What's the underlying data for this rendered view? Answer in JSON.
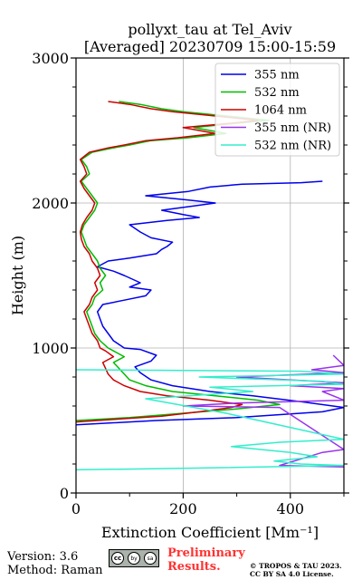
{
  "chart_data": {
    "type": "line",
    "title": "pollyxt_tau at Tel_Aviv",
    "subtitle": "[Averaged] 20230709 15:00-15:59",
    "xlabel": "Extinction Coefficient [Mm⁻¹]",
    "ylabel": "Height (m)",
    "xlim": [
      0,
      500
    ],
    "ylim": [
      0,
      3000
    ],
    "xticks": [
      "0",
      "200",
      "400"
    ],
    "yticks": [
      "0",
      "1000",
      "2000",
      "3000"
    ],
    "grid": true,
    "legend_position": "top-right",
    "series": [
      {
        "name": "355 nm",
        "color": "#0000ee",
        "points": [
          [
            0,
            470
          ],
          [
            150,
            500
          ],
          [
            300,
            520
          ],
          [
            460,
            560
          ],
          [
            500,
            590
          ],
          [
            420,
            630
          ],
          [
            330,
            670
          ],
          [
            250,
            700
          ],
          [
            180,
            740
          ],
          [
            140,
            780
          ],
          [
            120,
            830
          ],
          [
            110,
            870
          ],
          [
            140,
            910
          ],
          [
            150,
            950
          ],
          [
            120,
            990
          ],
          [
            90,
            1000
          ],
          [
            70,
            1050
          ],
          [
            60,
            1100
          ],
          [
            50,
            1150
          ],
          [
            45,
            1200
          ],
          [
            40,
            1250
          ],
          [
            50,
            1300
          ],
          [
            90,
            1330
          ],
          [
            130,
            1360
          ],
          [
            140,
            1400
          ],
          [
            100,
            1420
          ],
          [
            120,
            1450
          ],
          [
            90,
            1500
          ],
          [
            70,
            1530
          ],
          [
            40,
            1560
          ],
          [
            60,
            1600
          ],
          [
            100,
            1620
          ],
          [
            150,
            1650
          ],
          [
            160,
            1680
          ],
          [
            170,
            1700
          ],
          [
            180,
            1730
          ],
          [
            140,
            1760
          ],
          [
            120,
            1800
          ],
          [
            100,
            1850
          ],
          [
            170,
            1880
          ],
          [
            230,
            1900
          ],
          [
            200,
            1920
          ],
          [
            160,
            1950
          ],
          [
            220,
            1980
          ],
          [
            260,
            2000
          ],
          [
            210,
            2020
          ],
          [
            130,
            2050
          ],
          [
            210,
            2080
          ],
          [
            250,
            2110
          ],
          [
            310,
            2130
          ],
          [
            420,
            2140
          ],
          [
            460,
            2150
          ]
        ]
      },
      {
        "name": "532 nm",
        "color": "#00bb00",
        "points": [
          [
            0,
            500
          ],
          [
            100,
            520
          ],
          [
            200,
            550
          ],
          [
            300,
            580
          ],
          [
            380,
            610
          ],
          [
            340,
            640
          ],
          [
            260,
            670
          ],
          [
            180,
            700
          ],
          [
            130,
            740
          ],
          [
            100,
            780
          ],
          [
            90,
            820
          ],
          [
            80,
            860
          ],
          [
            70,
            900
          ],
          [
            90,
            940
          ],
          [
            70,
            980
          ],
          [
            60,
            1000
          ],
          [
            45,
            1050
          ],
          [
            35,
            1100
          ],
          [
            30,
            1150
          ],
          [
            25,
            1200
          ],
          [
            20,
            1250
          ],
          [
            30,
            1300
          ],
          [
            35,
            1350
          ],
          [
            50,
            1400
          ],
          [
            45,
            1450
          ],
          [
            55,
            1500
          ],
          [
            45,
            1550
          ],
          [
            40,
            1600
          ],
          [
            30,
            1650
          ],
          [
            20,
            1700
          ],
          [
            15,
            1750
          ],
          [
            10,
            1800
          ],
          [
            15,
            1850
          ],
          [
            25,
            1900
          ],
          [
            35,
            1950
          ],
          [
            40,
            2000
          ],
          [
            30,
            2050
          ],
          [
            20,
            2100
          ],
          [
            10,
            2150
          ],
          [
            25,
            2200
          ],
          [
            20,
            2250
          ],
          [
            10,
            2300
          ],
          [
            30,
            2350
          ],
          [
            70,
            2380
          ],
          [
            100,
            2400
          ],
          [
            140,
            2430
          ],
          [
            210,
            2450
          ],
          [
            280,
            2480
          ],
          [
            220,
            2520
          ],
          [
            300,
            2550
          ],
          [
            360,
            2570
          ],
          [
            280,
            2600
          ],
          [
            200,
            2630
          ],
          [
            160,
            2650
          ],
          [
            120,
            2680
          ],
          [
            80,
            2700
          ]
        ]
      },
      {
        "name": "1064 nm",
        "color": "#cc0000",
        "points": [
          [
            0,
            490
          ],
          [
            80,
            510
          ],
          [
            160,
            530
          ],
          [
            230,
            560
          ],
          [
            290,
            590
          ],
          [
            310,
            610
          ],
          [
            250,
            640
          ],
          [
            170,
            670
          ],
          [
            120,
            700
          ],
          [
            90,
            740
          ],
          [
            70,
            780
          ],
          [
            60,
            820
          ],
          [
            55,
            860
          ],
          [
            50,
            900
          ],
          [
            70,
            940
          ],
          [
            55,
            980
          ],
          [
            45,
            1000
          ],
          [
            40,
            1050
          ],
          [
            30,
            1100
          ],
          [
            25,
            1150
          ],
          [
            20,
            1200
          ],
          [
            15,
            1250
          ],
          [
            25,
            1300
          ],
          [
            30,
            1350
          ],
          [
            40,
            1400
          ],
          [
            35,
            1450
          ],
          [
            45,
            1500
          ],
          [
            40,
            1550
          ],
          [
            30,
            1600
          ],
          [
            25,
            1650
          ],
          [
            15,
            1700
          ],
          [
            10,
            1750
          ],
          [
            8,
            1800
          ],
          [
            12,
            1850
          ],
          [
            20,
            1900
          ],
          [
            30,
            1950
          ],
          [
            35,
            2000
          ],
          [
            25,
            2050
          ],
          [
            15,
            2100
          ],
          [
            8,
            2150
          ],
          [
            20,
            2200
          ],
          [
            15,
            2250
          ],
          [
            8,
            2300
          ],
          [
            25,
            2350
          ],
          [
            60,
            2380
          ],
          [
            90,
            2400
          ],
          [
            130,
            2430
          ],
          [
            190,
            2450
          ],
          [
            260,
            2480
          ],
          [
            200,
            2520
          ],
          [
            290,
            2550
          ],
          [
            340,
            2570
          ],
          [
            260,
            2600
          ],
          [
            180,
            2630
          ],
          [
            140,
            2650
          ],
          [
            100,
            2680
          ],
          [
            60,
            2700
          ]
        ]
      },
      {
        "name": "355 nm (NR)",
        "color": "#9933ee",
        "points": [
          [
            500,
            180
          ],
          [
            380,
            190
          ],
          [
            460,
            280
          ],
          [
            500,
            300
          ],
          [
            380,
            590
          ],
          [
            200,
            600
          ],
          [
            300,
            620
          ],
          [
            500,
            640
          ],
          [
            460,
            700
          ],
          [
            500,
            720
          ],
          [
            400,
            740
          ],
          [
            500,
            760
          ],
          [
            300,
            800
          ],
          [
            500,
            830
          ],
          [
            440,
            850
          ],
          [
            500,
            880
          ],
          [
            480,
            950
          ]
        ]
      },
      {
        "name": "532 nm (NR)",
        "color": "#33eecc",
        "points": [
          [
            0,
            160
          ],
          [
            200,
            170
          ],
          [
            500,
            190
          ],
          [
            420,
            200
          ],
          [
            370,
            220
          ],
          [
            450,
            250
          ],
          [
            400,
            280
          ],
          [
            290,
            320
          ],
          [
            380,
            350
          ],
          [
            500,
            370
          ],
          [
            280,
            550
          ],
          [
            130,
            650
          ],
          [
            330,
            700
          ],
          [
            250,
            730
          ],
          [
            500,
            750
          ],
          [
            460,
            770
          ],
          [
            230,
            800
          ],
          [
            500,
            820
          ],
          [
            420,
            840
          ],
          [
            0,
            850
          ]
        ]
      }
    ]
  },
  "footer": {
    "version": "Version: 3.6",
    "method": "Method: Raman",
    "preliminary_line1": "Preliminary",
    "preliminary_line2": "Results.",
    "copyright_line1": "© TROPOS & TAU 2023.",
    "copyright_line2": "CC BY SA 4.0 License.",
    "license_badge": [
      "cc",
      "by",
      "sa"
    ]
  }
}
